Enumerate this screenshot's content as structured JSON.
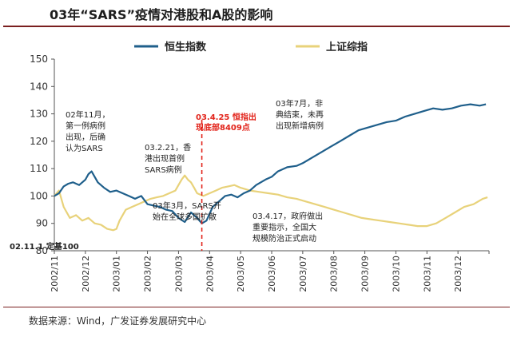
{
  "header": {
    "title": "03年“SARS”疫情对港股和A股的影响"
  },
  "footer": {
    "source": "数据来源：Wind，广发证券发展研究中心"
  },
  "chart_data": {
    "type": "line",
    "title": "03年“SARS”疫情对港股和A股的影响",
    "ylim": [
      80,
      150
    ],
    "yticks": [
      80,
      90,
      100,
      110,
      120,
      130,
      140,
      150
    ],
    "categories": [
      "2002/11",
      "2002/12",
      "2003/01",
      "2003/02",
      "2003/03",
      "2003/04",
      "2003/05",
      "2003/06",
      "2003/07",
      "2003/08",
      "2003/09",
      "2003/10",
      "2003/11",
      "2003/12"
    ],
    "base_label": "02.11.1 定基100",
    "series": [
      {
        "name": "恒生指数",
        "color": "#1f5f8b",
        "x": [
          0,
          0.15,
          0.3,
          0.45,
          0.6,
          0.8,
          1.0,
          1.1,
          1.2,
          1.3,
          1.4,
          1.6,
          1.8,
          2.0,
          2.2,
          2.4,
          2.6,
          2.8,
          3.0,
          3.2,
          3.4,
          3.6,
          3.8,
          4.0,
          4.2,
          4.4,
          4.6,
          4.75,
          4.9,
          5.1,
          5.3,
          5.5,
          5.7,
          5.9,
          6.1,
          6.3,
          6.5,
          6.8,
          7.0,
          7.2,
          7.5,
          7.8,
          8.0,
          8.3,
          8.6,
          8.9,
          9.2,
          9.5,
          9.8,
          10.1,
          10.4,
          10.7,
          11.0,
          11.3,
          11.6,
          11.9,
          12.2,
          12.5,
          12.8,
          13.1,
          13.4,
          13.7,
          13.9
        ],
        "values": [
          100,
          101,
          103.5,
          104.5,
          105,
          104,
          106,
          108,
          109,
          107,
          105,
          103,
          101.5,
          102,
          101,
          100,
          99,
          100,
          97,
          96.5,
          96,
          95,
          94.5,
          92,
          90.5,
          94,
          92,
          90,
          91,
          96,
          98,
          100,
          100.5,
          99.5,
          101,
          102,
          104,
          106,
          107,
          109,
          110.5,
          111,
          112,
          114,
          116,
          118,
          120,
          122,
          124,
          125,
          126,
          127,
          127.5,
          129,
          130,
          131,
          132,
          131.5,
          132,
          133,
          133.5,
          133,
          133.5
        ]
      },
      {
        "name": "上证综指",
        "color": "#e8d27a",
        "x": [
          0,
          0.15,
          0.3,
          0.5,
          0.7,
          0.9,
          1.1,
          1.3,
          1.5,
          1.7,
          1.9,
          2.0,
          2.1,
          2.2,
          2.3,
          2.5,
          2.7,
          2.9,
          3.1,
          3.3,
          3.5,
          3.7,
          3.9,
          4.0,
          4.1,
          4.2,
          4.3,
          4.4,
          4.5,
          4.6,
          4.8,
          5.0,
          5.2,
          5.4,
          5.6,
          5.8,
          6.0,
          6.3,
          6.6,
          6.9,
          7.2,
          7.5,
          7.8,
          8.1,
          8.4,
          8.7,
          9.0,
          9.3,
          9.6,
          9.9,
          10.2,
          10.5,
          10.8,
          11.1,
          11.4,
          11.7,
          12.0,
          12.3,
          12.6,
          12.9,
          13.2,
          13.5,
          13.8,
          13.95
        ],
        "values": [
          100,
          102,
          96,
          92,
          93,
          91,
          92,
          90,
          89.5,
          88,
          87.5,
          88,
          91,
          93,
          95,
          96,
          97,
          98,
          99,
          99.5,
          100,
          101,
          102,
          104,
          106,
          107.5,
          106,
          105,
          103,
          101,
          100,
          101,
          102,
          103,
          103.5,
          104,
          103,
          102,
          101.5,
          101,
          100.5,
          99.5,
          99,
          98,
          97,
          96,
          95,
          94,
          93,
          92,
          91.5,
          91,
          90.5,
          90,
          89.5,
          89,
          89,
          90,
          92,
          94,
          96,
          97,
          99,
          99.5
        ]
      }
    ],
    "event_line": {
      "x": 4.75,
      "label": [
        "03.4.25 恒指出",
        "现底部8409点"
      ]
    },
    "annotations": [
      {
        "id": "a1",
        "lines": [
          "02年11月，",
          "第一例病例",
          "出现，后确",
          "认为SARS"
        ]
      },
      {
        "id": "a2",
        "lines": [
          "03.2.21，香",
          "港出现首例",
          "SARS病例"
        ]
      },
      {
        "id": "a3",
        "lines": [
          "03年3月，SARS开",
          "始在全球多国扩散"
        ]
      },
      {
        "id": "a4",
        "lines": [
          "03.4.17，政府做出",
          "重要指示，全国大",
          "规模防治正式启动"
        ]
      },
      {
        "id": "a5",
        "lines": [
          "03年7月，非",
          "典结束，未再",
          "出现新增病例"
        ]
      }
    ]
  }
}
